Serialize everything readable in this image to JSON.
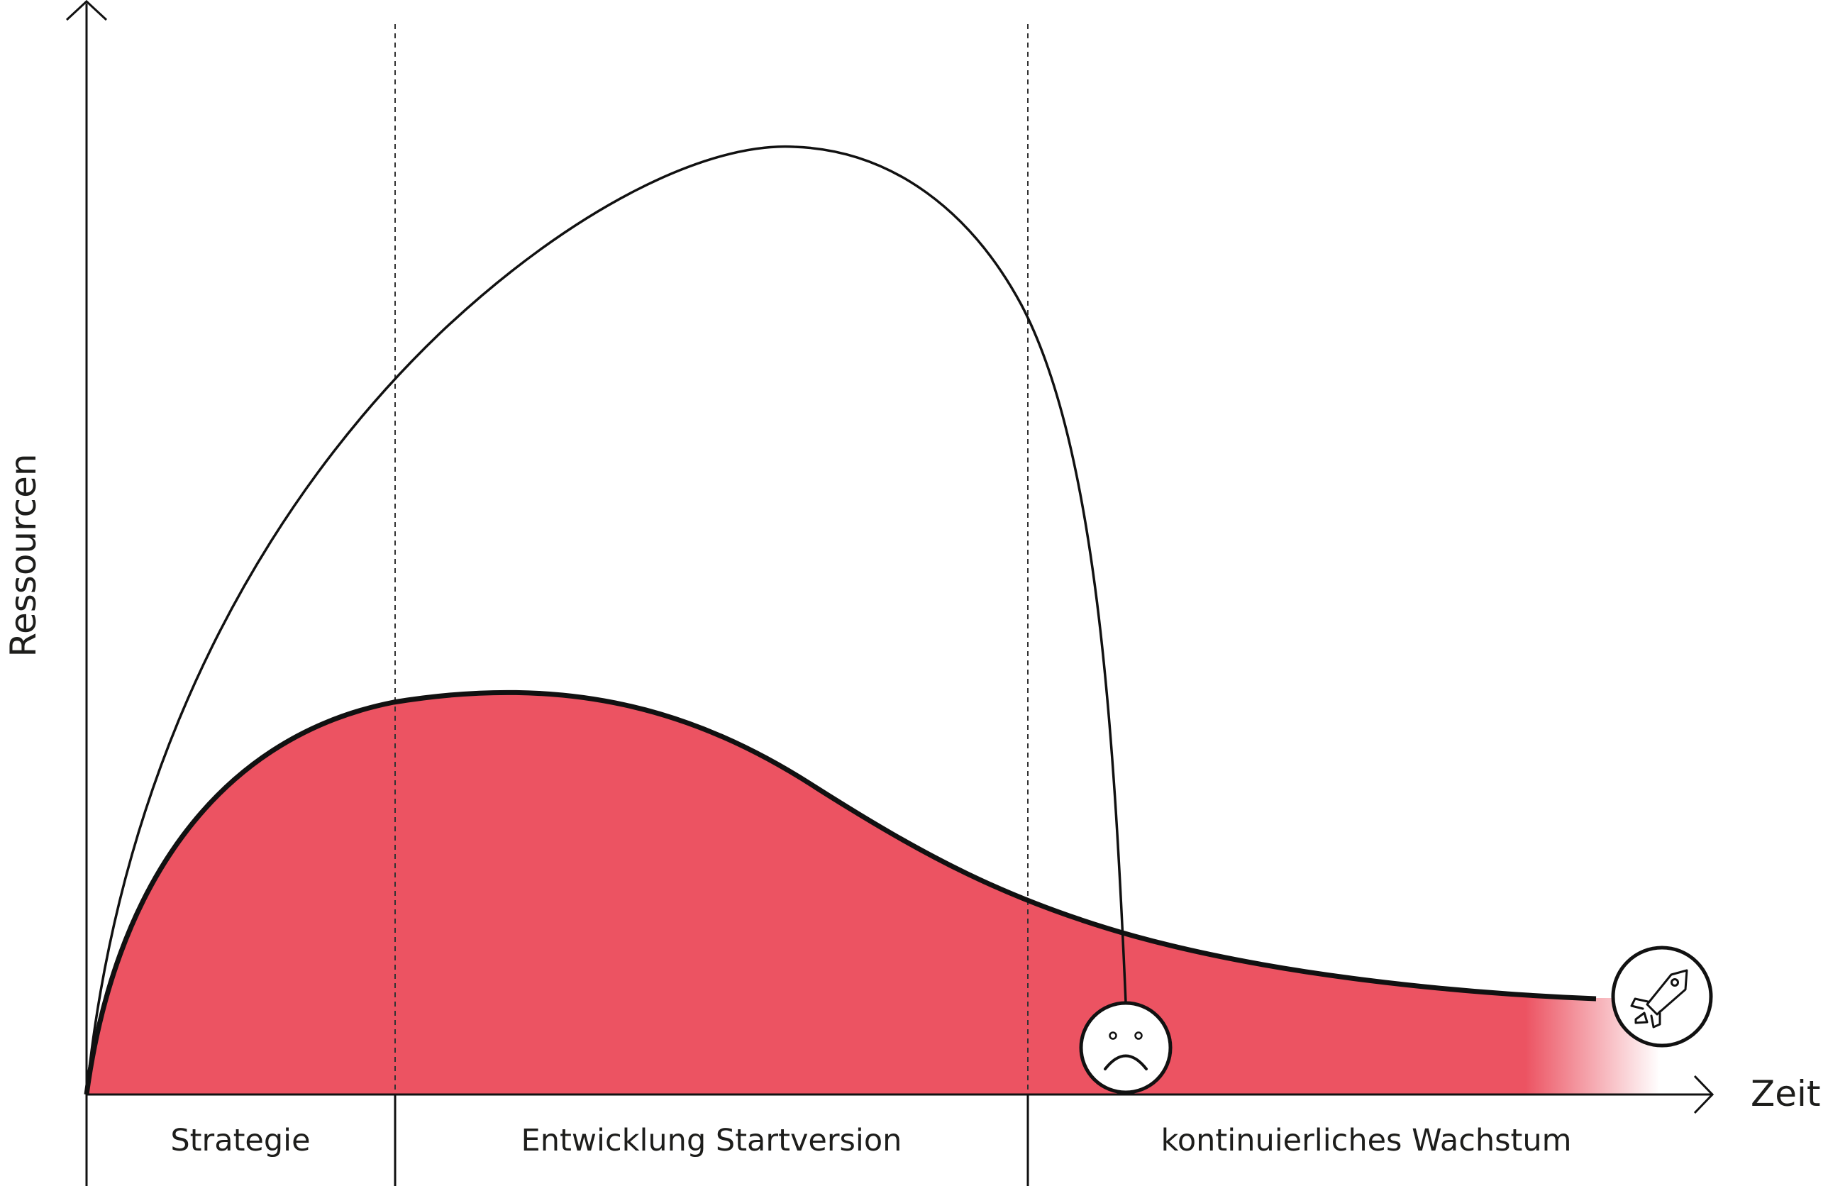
{
  "axes": {
    "y_label": "Ressourcen",
    "x_label": "Zeit"
  },
  "phases": [
    {
      "label": "Strategie"
    },
    {
      "label": "Entwicklung Startversion"
    },
    {
      "label": "kontinuierliches Wachstum"
    }
  ],
  "curves": {
    "tall_curve_icon": "sad-face-icon",
    "filled_curve_icon": "rocket-icon"
  },
  "colors": {
    "fill": "#ec5362",
    "line": "#111111",
    "background": "#ffffff"
  }
}
